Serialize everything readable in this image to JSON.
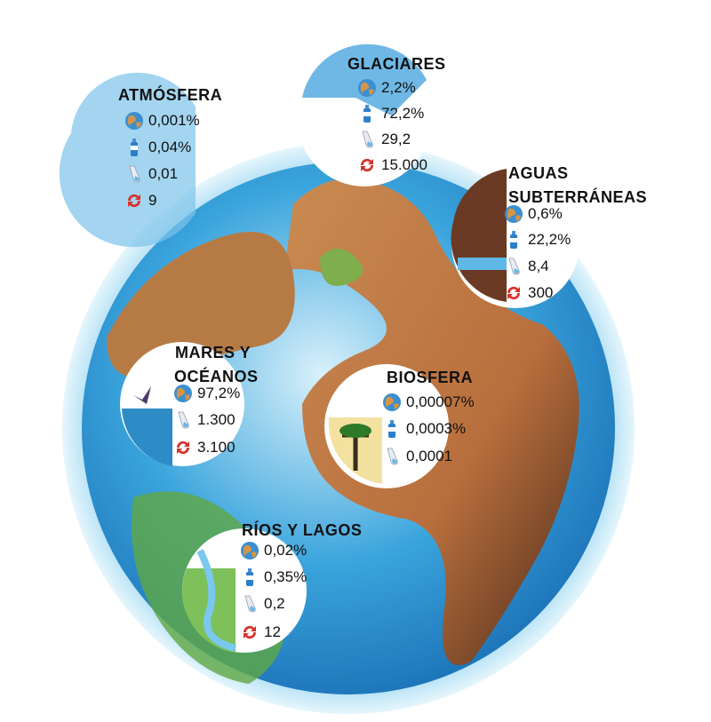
{
  "reservoirs": [
    {
      "title": [
        "ATMÓSFERA"
      ],
      "values": [
        "0,001%",
        "0,04%",
        "0,01",
        "9"
      ]
    },
    {
      "title": [
        "GLACIARES"
      ],
      "values": [
        "2,2%",
        "72,2%",
        "29,2",
        "15.000"
      ]
    },
    {
      "title": [
        "AGUAS",
        "SUBTERRÁNEAS"
      ],
      "values": [
        "0,6%",
        "22,2%",
        "8,4",
        "300"
      ]
    },
    {
      "title": [
        "MARES Y",
        "OCÉANOS"
      ],
      "values": [
        "97,2%",
        "1.300",
        "3.100"
      ]
    },
    {
      "title": [
        "BIOSFERA"
      ],
      "values": [
        "0,00007%",
        "0,0003%",
        "0,0001"
      ]
    },
    {
      "title": [
        "RÍOS Y LAGOS"
      ],
      "values": [
        "0,02%",
        "0,35%",
        "0,2",
        "12"
      ]
    }
  ]
}
